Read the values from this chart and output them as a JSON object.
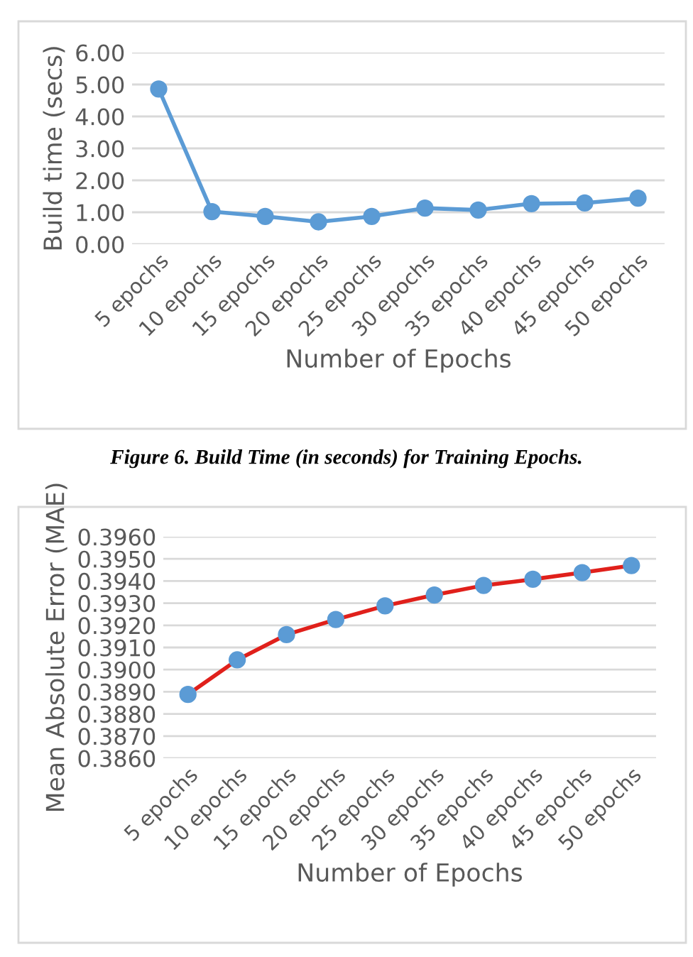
{
  "chart_data": [
    {
      "type": "line",
      "xlabel": "Number of Epochs",
      "ylabel": "Build time (secs)",
      "categories": [
        "5 epochs",
        "10 epochs",
        "15 epochs",
        "20 epochs",
        "25 epochs",
        "30 epochs",
        "35 epochs",
        "40 epochs",
        "45 epochs",
        "50 epochs"
      ],
      "series": [
        {
          "color": "#5b9bd5",
          "values": [
            4.86,
            1.02,
            0.87,
            0.7,
            0.87,
            1.13,
            1.07,
            1.27,
            1.29,
            1.44
          ]
        }
      ],
      "ylim": [
        0,
        6
      ],
      "yticks": [
        {
          "value": 0,
          "label": "0.00"
        },
        {
          "value": 1,
          "label": "1.00"
        },
        {
          "value": 2,
          "label": "2.00"
        },
        {
          "value": 3,
          "label": "3.00"
        },
        {
          "value": 4,
          "label": "4.00"
        },
        {
          "value": 5,
          "label": "5.00"
        },
        {
          "value": 6,
          "label": "6.00"
        }
      ],
      "grid": "y",
      "marker": "circle",
      "line_style": "solid",
      "annotations": [
        "Figure 6. Build Time (in seconds) for Training Epochs."
      ]
    },
    {
      "type": "line",
      "xlabel": "Number of Epochs",
      "ylabel": "Mean Absolute Error (MAE)",
      "categories": [
        "5 epochs",
        "10 epochs",
        "15 epochs",
        "20 epochs",
        "25 epochs",
        "30 epochs",
        "35 epochs",
        "40 epochs",
        "45 epochs",
        "50 epochs"
      ],
      "series": [
        {
          "color": "#e0201b",
          "colors": [
            "#5b9bd5",
            "#5b9bd5",
            "#5b9bd5",
            "#5b9bd5",
            "#5b9bd5",
            "#5b9bd5",
            "#5b9bd5",
            "#5b9bd5",
            "#5b9bd5",
            "#5b9bd5"
          ],
          "values": [
            0.38888,
            0.39044,
            0.39158,
            0.39226,
            0.39288,
            0.39337,
            0.3938,
            0.39408,
            0.39438,
            0.3947
          ]
        }
      ],
      "ylim": [
        0.386,
        0.396
      ],
      "yticks": [
        {
          "value": 0.386,
          "label": "0.3860"
        },
        {
          "value": 0.387,
          "label": "0.3870"
        },
        {
          "value": 0.388,
          "label": "0.3880"
        },
        {
          "value": 0.389,
          "label": "0.3890"
        },
        {
          "value": 0.39,
          "label": "0.3900"
        },
        {
          "value": 0.391,
          "label": "0.3910"
        },
        {
          "value": 0.392,
          "label": "0.3920"
        },
        {
          "value": 0.393,
          "label": "0.3930"
        },
        {
          "value": 0.394,
          "label": "0.3940"
        },
        {
          "value": 0.395,
          "label": "0.3950"
        },
        {
          "value": 0.396,
          "label": "0.3960"
        }
      ],
      "grid": "y",
      "marker": "circle",
      "line_style": "solid"
    }
  ]
}
